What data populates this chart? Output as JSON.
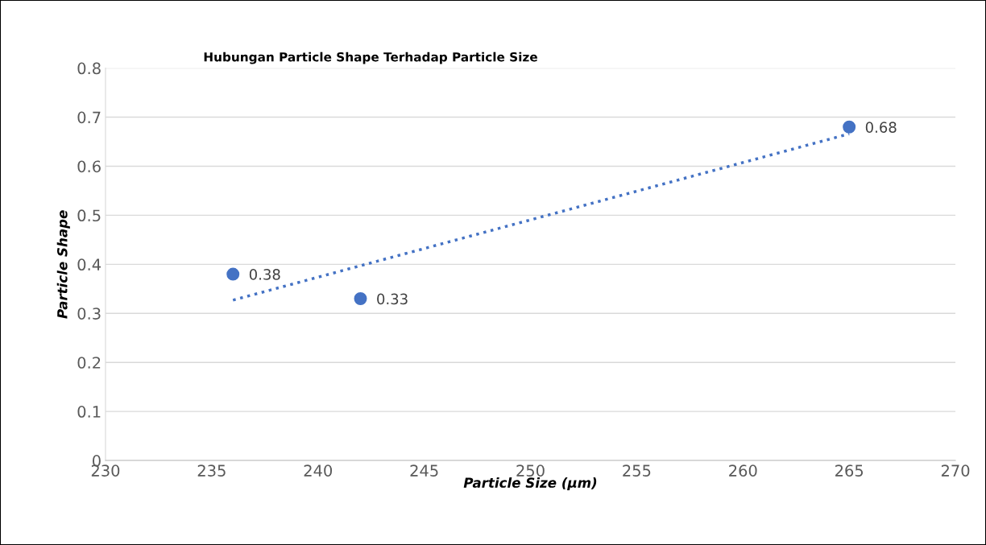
{
  "chart_data": {
    "type": "scatter",
    "title": "Hubungan Particle Shape Terhadap Particle Size",
    "xlabel": "Particle Size (µm)",
    "ylabel": "Particle Shape",
    "series": [
      {
        "type": "scatter",
        "color": "#4472c4",
        "x": [
          236,
          242,
          265
        ],
        "values": [
          0.38,
          0.33,
          0.68
        ],
        "value_labels": [
          "0.38",
          "0.33",
          "0.68"
        ],
        "marker": "circle"
      },
      {
        "type": "line",
        "color": "#4472c4",
        "x": [
          236,
          265
        ],
        "values": [
          0.327,
          0.666
        ],
        "line_style": "dotted",
        "marker": "none"
      }
    ],
    "xlim": [
      230,
      270
    ],
    "xticks": [
      230,
      235,
      240,
      245,
      250,
      255,
      260,
      265,
      270
    ],
    "ylim": [
      0,
      0.8
    ],
    "yticks": [
      0,
      0.1,
      0.2,
      0.3,
      0.4,
      0.5,
      0.6,
      0.7,
      0.8
    ],
    "grid": "y",
    "legend": false
  }
}
